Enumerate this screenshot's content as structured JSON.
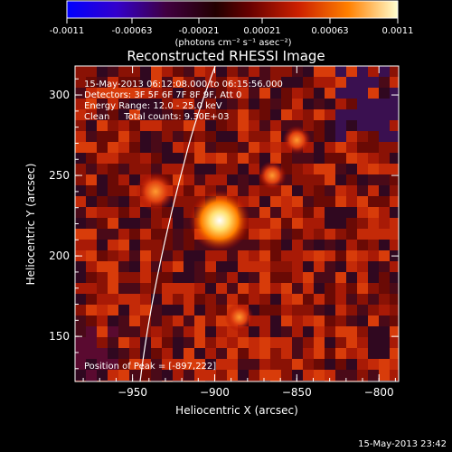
{
  "colorbar": {
    "tick_labels": [
      "-0.0011",
      "-0.00063",
      "-0.00021",
      "0.00021",
      "0.00063",
      "0.0011"
    ],
    "unit_label": "(photons cm⁻² s⁻¹ asec⁻²)"
  },
  "image": {
    "title": "Reconstructed RHESSI Image",
    "time_range": "15-May-2013 06:12:08.000 to 06:15:56.000",
    "detectors": "Detectors: 3F 5F 6F 7F 8F 9F, Att 0",
    "energy_range": "Energy Range: 12.0 - 25.0 keV",
    "method": "Clean     Total counts: 9.30E+03",
    "peak_position": "Position of Peak = [-897,222]",
    "xlabel": "Heliocentric X (arcsec)",
    "ylabel": "Heliocentric Y (arcsec)",
    "x_ticks": [
      "-950",
      "-900",
      "-850",
      "-800"
    ],
    "y_ticks": [
      "150",
      "200",
      "250",
      "300"
    ],
    "xlim": [
      -985,
      -788
    ],
    "ylim": [
      122,
      318
    ],
    "limb_curve": "white line",
    "sources": [
      {
        "x": -897,
        "y": 222,
        "brightness": "peak"
      },
      {
        "x": -936,
        "y": 240,
        "brightness": "bright"
      },
      {
        "x": -885,
        "y": 162,
        "brightness": "moderate"
      },
      {
        "x": -865,
        "y": 250,
        "brightness": "moderate"
      },
      {
        "x": -850,
        "y": 272,
        "brightness": "moderate"
      }
    ]
  },
  "footer": {
    "timestamp": "15-May-2013 23:42"
  }
}
